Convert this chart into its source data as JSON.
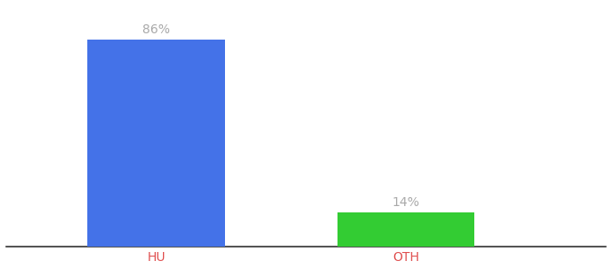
{
  "categories": [
    "HU",
    "OTH"
  ],
  "values": [
    86,
    14
  ],
  "bar_colors": [
    "#4472e8",
    "#33cc33"
  ],
  "label_texts": [
    "86%",
    "14%"
  ],
  "label_color": "#aaaaaa",
  "xlabel_color": "#e05050",
  "background_color": "#ffffff",
  "ylim": [
    0,
    100
  ],
  "x_positions": [
    1,
    2
  ],
  "bar_width": 0.55,
  "label_fontsize": 10,
  "xlabel_fontsize": 10,
  "xlim": [
    0.4,
    2.8
  ],
  "figsize": [
    6.8,
    3.0
  ],
  "dpi": 100,
  "spine_color": "#333333",
  "spine_linewidth": 1.2
}
